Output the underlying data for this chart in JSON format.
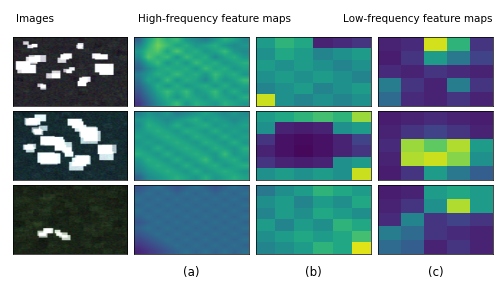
{
  "title_left": "Images",
  "title_center": "High-frequency feature maps",
  "title_right": "Low-frequency feature maps",
  "label_a": "(a)",
  "label_b": "(b)",
  "label_c": "(c)",
  "hf_dense_row0": [
    [
      0.3,
      0.55,
      0.7,
      0.6,
      0.65,
      0.5,
      0.45,
      0.4,
      0.5,
      0.6,
      0.55,
      0.45
    ],
    [
      0.4,
      0.6,
      0.75,
      0.65,
      0.55,
      0.6,
      0.5,
      0.55,
      0.6,
      0.5,
      0.45,
      0.5
    ],
    [
      0.5,
      0.65,
      0.7,
      0.55,
      0.7,
      0.55,
      0.6,
      0.5,
      0.55,
      0.65,
      0.5,
      0.45
    ],
    [
      0.45,
      0.7,
      0.6,
      0.65,
      0.5,
      0.65,
      0.55,
      0.6,
      0.45,
      0.55,
      0.6,
      0.5
    ],
    [
      0.35,
      0.55,
      0.65,
      0.5,
      0.6,
      0.5,
      0.65,
      0.55,
      0.6,
      0.5,
      0.55,
      0.6
    ],
    [
      0.3,
      0.45,
      0.55,
      0.6,
      0.55,
      0.6,
      0.5,
      0.65,
      0.55,
      0.6,
      0.5,
      0.55
    ],
    [
      0.4,
      0.5,
      0.6,
      0.55,
      0.65,
      0.55,
      0.6,
      0.5,
      0.65,
      0.55,
      0.6,
      0.5
    ],
    [
      0.35,
      0.55,
      0.5,
      0.65,
      0.5,
      0.6,
      0.55,
      0.45,
      0.6,
      0.5,
      0.55,
      0.65
    ],
    [
      0.3,
      0.45,
      0.6,
      0.5,
      0.6,
      0.5,
      0.55,
      0.6,
      0.5,
      0.6,
      0.5,
      0.55
    ],
    [
      0.25,
      0.4,
      0.55,
      0.65,
      0.55,
      0.65,
      0.5,
      0.55,
      0.65,
      0.5,
      0.6,
      0.5
    ],
    [
      0.2,
      0.35,
      0.5,
      0.6,
      0.5,
      0.6,
      0.55,
      0.5,
      0.6,
      0.55,
      0.5,
      0.6
    ],
    [
      0.15,
      0.3,
      0.45,
      0.55,
      0.65,
      0.5,
      0.6,
      0.55,
      0.5,
      0.6,
      0.55,
      0.5
    ]
  ],
  "hf_dense_row1": [
    [
      0.4,
      0.5,
      0.45,
      0.5,
      0.4,
      0.45,
      0.5,
      0.55,
      0.5,
      0.45,
      0.5,
      0.45
    ],
    [
      0.5,
      0.55,
      0.5,
      0.45,
      0.5,
      0.55,
      0.6,
      0.5,
      0.55,
      0.5,
      0.45,
      0.5
    ],
    [
      0.45,
      0.6,
      0.55,
      0.5,
      0.6,
      0.5,
      0.55,
      0.6,
      0.5,
      0.55,
      0.5,
      0.55
    ],
    [
      0.5,
      0.55,
      0.6,
      0.55,
      0.5,
      0.6,
      0.55,
      0.5,
      0.6,
      0.5,
      0.55,
      0.5
    ],
    [
      0.55,
      0.5,
      0.55,
      0.6,
      0.55,
      0.5,
      0.6,
      0.55,
      0.5,
      0.6,
      0.5,
      0.55
    ],
    [
      0.5,
      0.55,
      0.5,
      0.55,
      0.6,
      0.55,
      0.5,
      0.6,
      0.55,
      0.5,
      0.6,
      0.5
    ],
    [
      0.55,
      0.5,
      0.6,
      0.5,
      0.55,
      0.6,
      0.55,
      0.5,
      0.6,
      0.55,
      0.5,
      0.6
    ],
    [
      0.6,
      0.55,
      0.5,
      0.6,
      0.5,
      0.55,
      0.6,
      0.55,
      0.5,
      0.65,
      0.5,
      0.55
    ],
    [
      0.5,
      0.6,
      0.55,
      0.5,
      0.6,
      0.5,
      0.55,
      0.65,
      0.5,
      0.55,
      0.6,
      0.5
    ],
    [
      0.45,
      0.55,
      0.6,
      0.55,
      0.5,
      0.6,
      0.5,
      0.55,
      0.6,
      0.5,
      0.55,
      0.6
    ],
    [
      0.4,
      0.5,
      0.55,
      0.6,
      0.55,
      0.5,
      0.6,
      0.5,
      0.55,
      0.6,
      0.55,
      0.5
    ],
    [
      0.3,
      0.45,
      0.5,
      0.55,
      0.6,
      0.55,
      0.5,
      0.6,
      0.5,
      0.55,
      0.6,
      0.55
    ]
  ],
  "hf_dense_row2": [
    [
      0.25,
      0.3,
      0.35,
      0.3,
      0.25,
      0.3,
      0.35,
      0.3,
      0.25,
      0.3,
      0.35,
      0.3
    ],
    [
      0.3,
      0.35,
      0.3,
      0.35,
      0.3,
      0.35,
      0.3,
      0.35,
      0.3,
      0.35,
      0.3,
      0.35
    ],
    [
      0.35,
      0.3,
      0.35,
      0.3,
      0.35,
      0.3,
      0.35,
      0.3,
      0.35,
      0.3,
      0.35,
      0.3
    ],
    [
      0.3,
      0.35,
      0.3,
      0.35,
      0.3,
      0.35,
      0.3,
      0.35,
      0.3,
      0.35,
      0.3,
      0.35
    ],
    [
      0.35,
      0.3,
      0.35,
      0.3,
      0.35,
      0.3,
      0.35,
      0.3,
      0.35,
      0.3,
      0.35,
      0.3
    ],
    [
      0.3,
      0.35,
      0.3,
      0.35,
      0.3,
      0.35,
      0.3,
      0.35,
      0.3,
      0.35,
      0.3,
      0.35
    ],
    [
      0.25,
      0.3,
      0.35,
      0.3,
      0.35,
      0.3,
      0.35,
      0.3,
      0.35,
      0.3,
      0.35,
      0.3
    ],
    [
      0.3,
      0.35,
      0.3,
      0.35,
      0.3,
      0.35,
      0.3,
      0.35,
      0.3,
      0.35,
      0.3,
      0.35
    ],
    [
      0.25,
      0.3,
      0.35,
      0.3,
      0.35,
      0.3,
      0.35,
      0.3,
      0.35,
      0.3,
      0.35,
      0.3
    ],
    [
      0.2,
      0.25,
      0.3,
      0.35,
      0.3,
      0.35,
      0.3,
      0.35,
      0.3,
      0.35,
      0.3,
      0.35
    ],
    [
      0.15,
      0.2,
      0.25,
      0.3,
      0.35,
      0.3,
      0.35,
      0.3,
      0.35,
      0.3,
      0.35,
      0.3
    ],
    [
      0.1,
      0.15,
      0.2,
      0.25,
      0.3,
      0.35,
      0.3,
      0.35,
      0.3,
      0.35,
      0.3,
      0.35
    ]
  ],
  "hf_coarse_row0": [
    [
      0.55,
      0.65,
      0.6,
      0.1,
      0.12,
      0.15
    ],
    [
      0.5,
      0.6,
      0.55,
      0.45,
      0.5,
      0.55
    ],
    [
      0.55,
      0.5,
      0.55,
      0.5,
      0.45,
      0.5
    ],
    [
      0.5,
      0.55,
      0.5,
      0.55,
      0.5,
      0.45
    ],
    [
      0.45,
      0.5,
      0.55,
      0.45,
      0.5,
      0.55
    ],
    [
      0.92,
      0.5,
      0.45,
      0.5,
      0.45,
      0.5
    ]
  ],
  "hf_coarse_row1": [
    [
      0.55,
      0.6,
      0.65,
      0.7,
      0.65,
      0.85
    ],
    [
      0.5,
      0.1,
      0.08,
      0.1,
      0.5,
      0.55
    ],
    [
      0.15,
      0.05,
      0.03,
      0.05,
      0.1,
      0.2
    ],
    [
      0.1,
      0.05,
      0.02,
      0.05,
      0.1,
      0.15
    ],
    [
      0.15,
      0.1,
      0.08,
      0.1,
      0.5,
      0.55
    ],
    [
      0.5,
      0.55,
      0.5,
      0.55,
      0.5,
      0.92
    ]
  ],
  "hf_coarse_row2": [
    [
      0.4,
      0.5,
      0.55,
      0.65,
      0.6,
      0.55
    ],
    [
      0.5,
      0.55,
      0.45,
      0.55,
      0.5,
      0.6
    ],
    [
      0.45,
      0.55,
      0.5,
      0.6,
      0.55,
      0.5
    ],
    [
      0.55,
      0.45,
      0.55,
      0.5,
      0.65,
      0.6
    ],
    [
      0.5,
      0.55,
      0.6,
      0.55,
      0.6,
      0.7
    ],
    [
      0.45,
      0.5,
      0.55,
      0.65,
      0.6,
      0.95
    ]
  ],
  "lf_row0": [
    [
      0.1,
      0.12,
      0.93,
      0.65,
      0.15
    ],
    [
      0.08,
      0.15,
      0.55,
      0.4,
      0.2
    ],
    [
      0.12,
      0.1,
      0.15,
      0.12,
      0.1
    ],
    [
      0.42,
      0.15,
      0.1,
      0.42,
      0.15
    ],
    [
      0.35,
      0.12,
      0.1,
      0.15,
      0.1
    ]
  ],
  "lf_row1": [
    [
      0.08,
      0.1,
      0.12,
      0.1,
      0.08
    ],
    [
      0.1,
      0.15,
      0.2,
      0.15,
      0.1
    ],
    [
      0.12,
      0.85,
      0.75,
      0.88,
      0.55
    ],
    [
      0.1,
      0.88,
      0.92,
      0.82,
      0.5
    ],
    [
      0.08,
      0.15,
      0.55,
      0.4,
      0.3
    ]
  ],
  "lf_row2": [
    [
      0.08,
      0.1,
      0.55,
      0.6,
      0.55
    ],
    [
      0.1,
      0.15,
      0.5,
      0.88,
      0.55
    ],
    [
      0.12,
      0.45,
      0.15,
      0.2,
      0.15
    ],
    [
      0.42,
      0.35,
      0.15,
      0.12,
      0.1
    ],
    [
      0.35,
      0.3,
      0.1,
      0.15,
      0.1
    ]
  ],
  "sat_img0_seed": 10,
  "sat_img1_seed": 20,
  "sat_img2_seed": 30
}
